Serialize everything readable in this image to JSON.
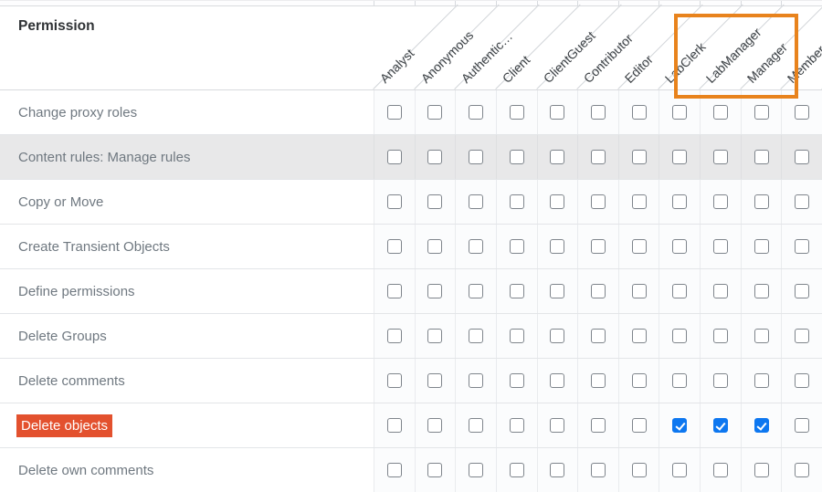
{
  "table": {
    "permission_header": "Permission",
    "roles": [
      {
        "label": "Analyst",
        "highlighted": false
      },
      {
        "label": "Anonymous",
        "highlighted": false
      },
      {
        "label": "Authentic…",
        "highlighted": false
      },
      {
        "label": "Client",
        "highlighted": false
      },
      {
        "label": "ClientGuest",
        "highlighted": false
      },
      {
        "label": "Contributor",
        "highlighted": false
      },
      {
        "label": "Editor",
        "highlighted": false
      },
      {
        "label": "LabClerk",
        "highlighted": true
      },
      {
        "label": "LabManager",
        "highlighted": true
      },
      {
        "label": "Manager",
        "highlighted": true
      },
      {
        "label": "Member",
        "highlighted": false
      }
    ],
    "rows": [
      {
        "permission": "Change proxy roles",
        "shaded": false,
        "highlighted": false,
        "checked": []
      },
      {
        "permission": "Content rules: Manage rules",
        "shaded": true,
        "highlighted": false,
        "checked": []
      },
      {
        "permission": "Copy or Move",
        "shaded": false,
        "highlighted": false,
        "checked": []
      },
      {
        "permission": "Create Transient Objects",
        "shaded": false,
        "highlighted": false,
        "checked": []
      },
      {
        "permission": "Define permissions",
        "shaded": false,
        "highlighted": false,
        "checked": []
      },
      {
        "permission": "Delete Groups",
        "shaded": false,
        "highlighted": false,
        "checked": []
      },
      {
        "permission": "Delete comments",
        "shaded": false,
        "highlighted": false,
        "checked": []
      },
      {
        "permission": "Delete objects",
        "shaded": false,
        "highlighted": true,
        "checked": [
          "LabClerk",
          "LabManager",
          "Manager"
        ]
      },
      {
        "permission": "Delete own comments",
        "shaded": false,
        "highlighted": false,
        "checked": []
      }
    ],
    "colors": {
      "highlight_box_border": "#e8831d",
      "selected_permission_bg": "#e3512e",
      "checkbox_checked_bg": "#0d77f0",
      "checkbox_border": "#7f858c",
      "shaded_row_bg": "#e8e8e9"
    }
  }
}
